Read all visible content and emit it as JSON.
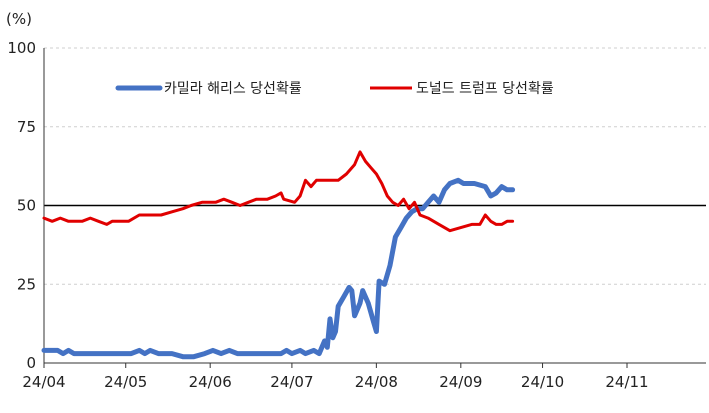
{
  "chart_data": {
    "type": "line",
    "unit_label": "(%)",
    "x_tick_labels": [
      "24/04",
      "24/05",
      "24/06",
      "24/07",
      "24/08",
      "24/09",
      "24/10",
      "24/11"
    ],
    "y_ticks": [
      0,
      25,
      50,
      75,
      100
    ],
    "ylim": [
      0,
      100
    ],
    "xlim": [
      "2024-04-01",
      "2024-11-30"
    ],
    "grid": "horizontal-dashed",
    "reference_line": 50,
    "legend_position": "top-center",
    "series": [
      {
        "name": "카밀라 해리스 당선확률",
        "color": "#4472C4",
        "points": [
          [
            "2024-04-01",
            4
          ],
          [
            "2024-04-06",
            4
          ],
          [
            "2024-04-08",
            3
          ],
          [
            "2024-04-10",
            4
          ],
          [
            "2024-04-12",
            3
          ],
          [
            "2024-04-20",
            3
          ],
          [
            "2024-04-28",
            3
          ],
          [
            "2024-05-03",
            3
          ],
          [
            "2024-05-06",
            4
          ],
          [
            "2024-05-08",
            3
          ],
          [
            "2024-05-10",
            4
          ],
          [
            "2024-05-13",
            3
          ],
          [
            "2024-05-18",
            3
          ],
          [
            "2024-05-22",
            2
          ],
          [
            "2024-05-26",
            2
          ],
          [
            "2024-05-30",
            3
          ],
          [
            "2024-06-02",
            4
          ],
          [
            "2024-06-05",
            3
          ],
          [
            "2024-06-08",
            4
          ],
          [
            "2024-06-11",
            3
          ],
          [
            "2024-06-14",
            3
          ],
          [
            "2024-06-20",
            3
          ],
          [
            "2024-06-27",
            3
          ],
          [
            "2024-06-29",
            4
          ],
          [
            "2024-07-01",
            3
          ],
          [
            "2024-07-04",
            4
          ],
          [
            "2024-07-06",
            3
          ],
          [
            "2024-07-09",
            4
          ],
          [
            "2024-07-11",
            3
          ],
          [
            "2024-07-13",
            7
          ],
          [
            "2024-07-14",
            5
          ],
          [
            "2024-07-15",
            14
          ],
          [
            "2024-07-16",
            8
          ],
          [
            "2024-07-17",
            10
          ],
          [
            "2024-07-18",
            18
          ],
          [
            "2024-07-20",
            21
          ],
          [
            "2024-07-22",
            24
          ],
          [
            "2024-07-23",
            23
          ],
          [
            "2024-07-24",
            15
          ],
          [
            "2024-07-26",
            19
          ],
          [
            "2024-07-27",
            23
          ],
          [
            "2024-07-29",
            19
          ],
          [
            "2024-07-31",
            13
          ],
          [
            "2024-08-01",
            10
          ],
          [
            "2024-08-02",
            26
          ],
          [
            "2024-08-04",
            25
          ],
          [
            "2024-08-06",
            31
          ],
          [
            "2024-08-08",
            40
          ],
          [
            "2024-08-10",
            43
          ],
          [
            "2024-08-12",
            46
          ],
          [
            "2024-08-14",
            48
          ],
          [
            "2024-08-16",
            49
          ],
          [
            "2024-08-18",
            49
          ],
          [
            "2024-08-20",
            51
          ],
          [
            "2024-08-22",
            53
          ],
          [
            "2024-08-24",
            51
          ],
          [
            "2024-08-26",
            55
          ],
          [
            "2024-08-28",
            57
          ],
          [
            "2024-08-31",
            58
          ],
          [
            "2024-09-02",
            57
          ],
          [
            "2024-09-06",
            57
          ],
          [
            "2024-09-10",
            56
          ],
          [
            "2024-09-12",
            53
          ],
          [
            "2024-09-14",
            54
          ],
          [
            "2024-09-16",
            56
          ],
          [
            "2024-09-18",
            55
          ],
          [
            "2024-09-20",
            55
          ]
        ]
      },
      {
        "name": "도널드 트럼프 당선확률",
        "color": "#E00000",
        "points": [
          [
            "2024-04-01",
            46
          ],
          [
            "2024-04-04",
            45
          ],
          [
            "2024-04-07",
            46
          ],
          [
            "2024-04-10",
            45
          ],
          [
            "2024-04-15",
            45
          ],
          [
            "2024-04-18",
            46
          ],
          [
            "2024-04-21",
            45
          ],
          [
            "2024-04-24",
            44
          ],
          [
            "2024-04-26",
            45
          ],
          [
            "2024-05-02",
            45
          ],
          [
            "2024-05-06",
            47
          ],
          [
            "2024-05-14",
            47
          ],
          [
            "2024-05-18",
            48
          ],
          [
            "2024-05-22",
            49
          ],
          [
            "2024-05-25",
            50
          ],
          [
            "2024-05-29",
            51
          ],
          [
            "2024-06-03",
            51
          ],
          [
            "2024-06-06",
            52
          ],
          [
            "2024-06-09",
            51
          ],
          [
            "2024-06-12",
            50
          ],
          [
            "2024-06-15",
            51
          ],
          [
            "2024-06-18",
            52
          ],
          [
            "2024-06-22",
            52
          ],
          [
            "2024-06-25",
            53
          ],
          [
            "2024-06-27",
            54
          ],
          [
            "2024-06-28",
            52
          ],
          [
            "2024-07-02",
            51
          ],
          [
            "2024-07-04",
            53
          ],
          [
            "2024-07-06",
            58
          ],
          [
            "2024-07-08",
            56
          ],
          [
            "2024-07-10",
            58
          ],
          [
            "2024-07-18",
            58
          ],
          [
            "2024-07-21",
            60
          ],
          [
            "2024-07-24",
            63
          ],
          [
            "2024-07-26",
            67
          ],
          [
            "2024-07-28",
            64
          ],
          [
            "2024-07-30",
            62
          ],
          [
            "2024-08-01",
            60
          ],
          [
            "2024-08-03",
            57
          ],
          [
            "2024-08-05",
            53
          ],
          [
            "2024-08-07",
            51
          ],
          [
            "2024-08-09",
            50
          ],
          [
            "2024-08-11",
            52
          ],
          [
            "2024-08-13",
            49
          ],
          [
            "2024-08-15",
            51
          ],
          [
            "2024-08-17",
            47
          ],
          [
            "2024-08-20",
            46
          ],
          [
            "2024-08-24",
            44
          ],
          [
            "2024-08-28",
            42
          ],
          [
            "2024-09-01",
            43
          ],
          [
            "2024-09-05",
            44
          ],
          [
            "2024-09-08",
            44
          ],
          [
            "2024-09-10",
            47
          ],
          [
            "2024-09-12",
            45
          ],
          [
            "2024-09-14",
            44
          ],
          [
            "2024-09-16",
            44
          ],
          [
            "2024-09-18",
            45
          ],
          [
            "2024-09-20",
            45
          ]
        ]
      }
    ]
  }
}
